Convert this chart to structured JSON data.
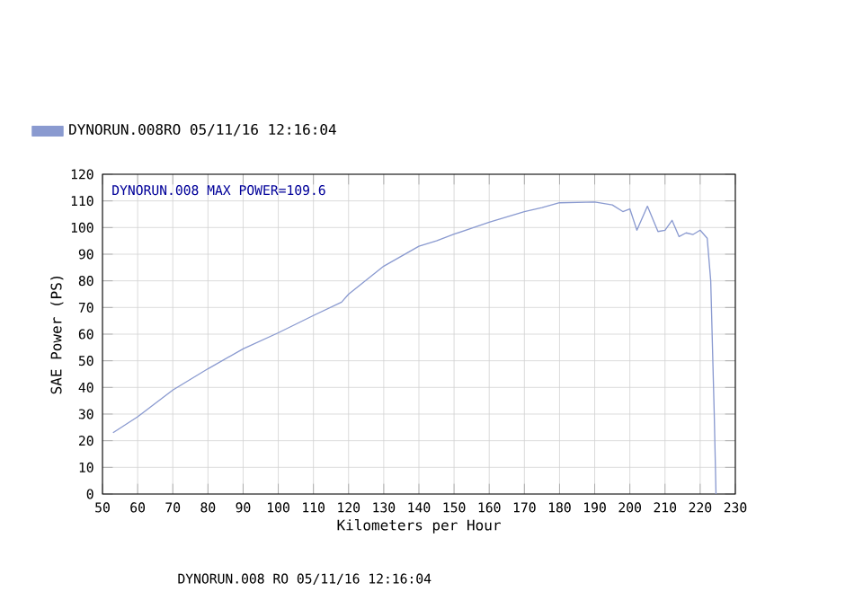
{
  "chart_data": {
    "type": "line",
    "xlabel": "Kilometers per Hour",
    "ylabel": "SAE Power (PS)",
    "x": [
      53,
      60,
      70,
      80,
      90,
      100,
      110,
      118,
      120,
      130,
      140,
      145,
      150,
      160,
      170,
      175,
      180,
      190,
      195,
      198,
      200,
      202,
      205,
      208,
      210,
      212,
      214,
      216,
      218,
      220,
      222,
      223,
      224,
      224.5
    ],
    "series": [
      {
        "name": "DYNORUN.008RO  05/11/16 12:16:04",
        "color": "#8a9ad0",
        "values": [
          23,
          29,
          39,
          47,
          54.5,
          60.5,
          67,
          72,
          75,
          85.5,
          93,
          95,
          97.5,
          102,
          106,
          107.5,
          109.3,
          109.6,
          108.5,
          106,
          107,
          99,
          108,
          98.5,
          99,
          102.7,
          96.6,
          98,
          97.4,
          99,
          96,
          80,
          30,
          0
        ]
      }
    ],
    "xlim": [
      50,
      230
    ],
    "ylim": [
      0,
      120
    ],
    "xticks": [
      50,
      60,
      70,
      80,
      90,
      100,
      110,
      120,
      130,
      140,
      150,
      160,
      170,
      180,
      190,
      200,
      210,
      220,
      230
    ],
    "yticks": [
      0,
      10,
      20,
      30,
      40,
      50,
      60,
      70,
      80,
      90,
      100,
      110,
      120
    ],
    "grid": true,
    "legend": "top left",
    "marker": "none",
    "line_style": "solid",
    "annotations": [
      "DYNORUN.008  MAX POWER=109.6",
      "DYNORUN.008    RO   05/11/16 12:16:04"
    ]
  }
}
